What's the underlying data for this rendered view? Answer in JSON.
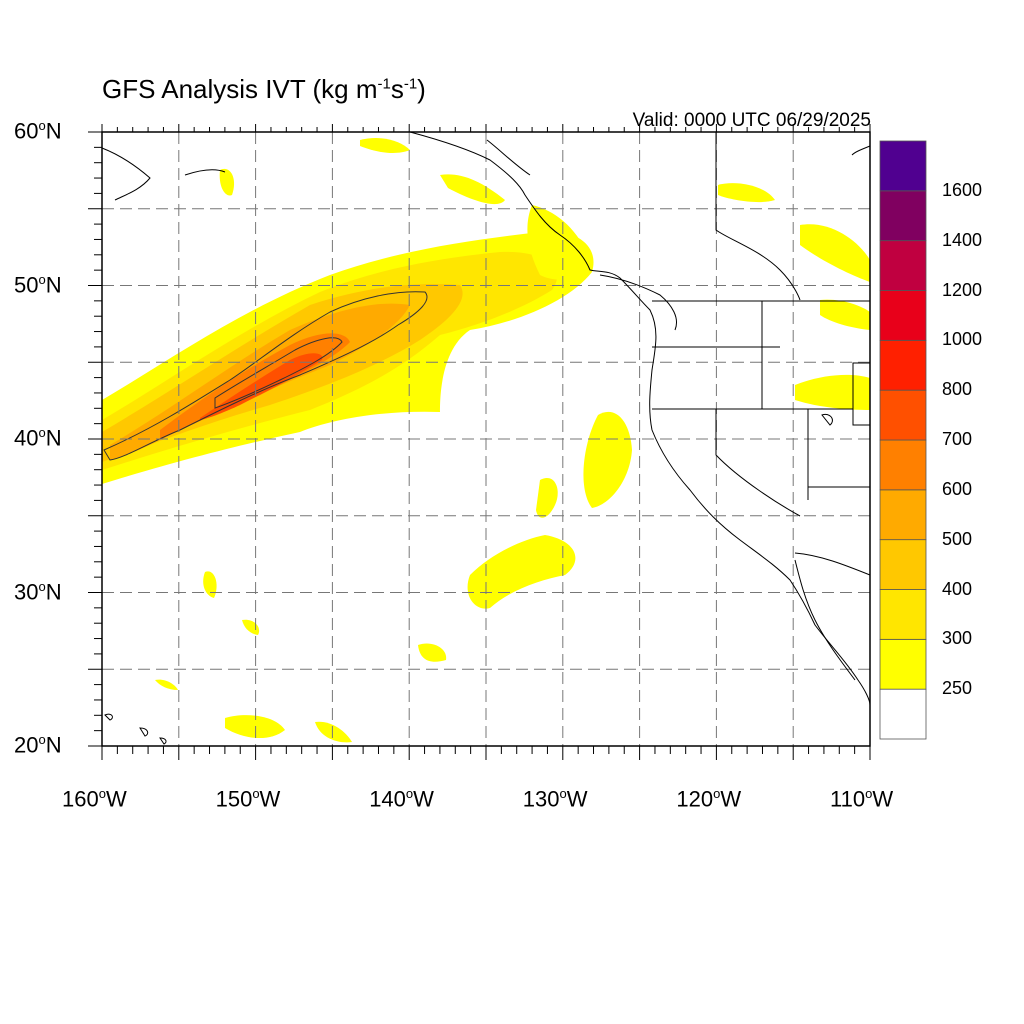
{
  "title": {
    "main": "GFS Analysis IVT (kg m",
    "sup1": "-1",
    "mid": "s",
    "sup2": "-1",
    "end": ")"
  },
  "valid": "Valid: 0000 UTC 06/29/2025",
  "map": {
    "lon_range": [
      -160,
      -110
    ],
    "lat_range": [
      20,
      60
    ],
    "grid": "dashed every 5 degrees",
    "lat_labels": [
      {
        "deg": "60",
        "hemi": "N"
      },
      {
        "deg": "50",
        "hemi": "N"
      },
      {
        "deg": "40",
        "hemi": "N"
      },
      {
        "deg": "30",
        "hemi": "N"
      },
      {
        "deg": "20",
        "hemi": "N"
      }
    ],
    "lon_labels": [
      {
        "deg": "160",
        "hemi": "W"
      },
      {
        "deg": "150",
        "hemi": "W"
      },
      {
        "deg": "140",
        "hemi": "W"
      },
      {
        "deg": "130",
        "hemi": "W"
      },
      {
        "deg": "120",
        "hemi": "W"
      },
      {
        "deg": "110",
        "hemi": "W"
      }
    ],
    "deg_symbol": "o"
  },
  "colorbar": {
    "labels": [
      "250",
      "300",
      "400",
      "500",
      "600",
      "700",
      "800",
      "1000",
      "1200",
      "1400",
      "1600"
    ],
    "colors": [
      "#ffffff",
      "#ffff00",
      "#ffe600",
      "#ffc800",
      "#ffaa00",
      "#ff8000",
      "#ff5000",
      "#ff2000",
      "#e8001a",
      "#c00040",
      "#800060",
      "#500090"
    ]
  }
}
